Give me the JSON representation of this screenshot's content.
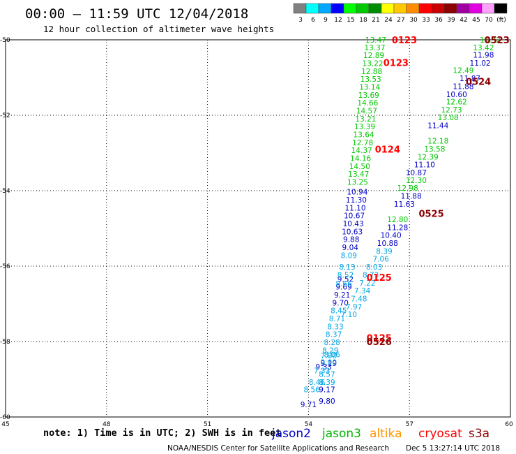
{
  "header": {
    "title": "00:00 – 11:59 UTC 12/04/2018",
    "subtitle": "12 hour collection of altimeter wave heights"
  },
  "colorbar": {
    "labels": [
      "3",
      "6",
      "9",
      "12",
      "15",
      "18",
      "21",
      "24",
      "27",
      "30",
      "33",
      "36",
      "39",
      "42",
      "45",
      "70",
      "(ft)"
    ],
    "colors": [
      "#808080",
      "#00ffff",
      "#00a8ff",
      "#0000ff",
      "#00ff00",
      "#00c800",
      "#008c00",
      "#ffff00",
      "#ffc800",
      "#ff8c00",
      "#ff0000",
      "#c80000",
      "#8c0000",
      "#a000a0",
      "#e000e0",
      "#ffa0ff",
      "#000000"
    ]
  },
  "footer": {
    "note": "note: 1) Time is in UTC; 2) SWH is in feet",
    "credit": "NOAA/NESDIS Center for Satellite Applications and Research",
    "timestamp": "Dec  5 13:27:14 UTC 2018"
  },
  "chart_data": {
    "type": "scatter",
    "xlim": [
      45,
      60
    ],
    "ylim": [
      -60,
      -50
    ],
    "x_ticks": [
      45,
      48,
      51,
      54,
      57,
      60
    ],
    "y_ticks": [
      -50,
      -52,
      -54,
      -56,
      -58,
      -60
    ],
    "x_tick_labels": [
      "45",
      "48",
      "51",
      "54",
      "57",
      "60"
    ],
    "y_tick_labels": [
      "-50",
      "-52",
      "-54",
      "-56",
      "-58",
      "-60"
    ],
    "grid": true,
    "legend": [
      {
        "name": "jason2",
        "color": "#0000c8"
      },
      {
        "name": "jason3",
        "color": "#00b400"
      },
      {
        "name": "altika",
        "color": "#ff9600"
      },
      {
        "name": "cryosat",
        "color": "#ff0000"
      },
      {
        "name": "s3a",
        "color": "#8c0000"
      }
    ],
    "time_labels": [
      {
        "text": "0123",
        "x": 56.85,
        "y": -50.0,
        "color": "#ff0000"
      },
      {
        "text": "0123",
        "x": 56.6,
        "y": -50.6,
        "color": "#ff0000"
      },
      {
        "text": "0124",
        "x": 56.35,
        "y": -52.9,
        "color": "#ff0000"
      },
      {
        "text": "0125",
        "x": 56.1,
        "y": -56.3,
        "color": "#ff0000"
      },
      {
        "text": "0125",
        "x": 56.1,
        "y": -57.9,
        "color": "#ff0000"
      },
      {
        "text": "0523",
        "x": 59.6,
        "y": -50.0,
        "color": "#8c0000"
      },
      {
        "text": "0524",
        "x": 59.05,
        "y": -51.1,
        "color": "#8c0000"
      },
      {
        "text": "0525",
        "x": 57.65,
        "y": -54.6,
        "color": "#8c0000"
      },
      {
        "text": "0526",
        "x": 56.1,
        "y": -58.0,
        "color": "#8c0000"
      }
    ],
    "series": [
      {
        "name": "jason3",
        "color": "#00c800",
        "points": [
          {
            "x": 56.0,
            "y": -50.0,
            "v": "13.47"
          },
          {
            "x": 55.97,
            "y": -50.2,
            "v": "13.37"
          },
          {
            "x": 55.94,
            "y": -50.41,
            "v": "12.89"
          },
          {
            "x": 55.91,
            "y": -50.62,
            "v": "13.22"
          },
          {
            "x": 55.88,
            "y": -50.83,
            "v": "12.88"
          },
          {
            "x": 55.85,
            "y": -51.04,
            "v": "13.53"
          },
          {
            "x": 55.82,
            "y": -51.25,
            "v": "13.14"
          },
          {
            "x": 55.79,
            "y": -51.46,
            "v": "13.69"
          },
          {
            "x": 55.76,
            "y": -51.67,
            "v": "14.66"
          },
          {
            "x": 55.73,
            "y": -51.88,
            "v": "14.57"
          },
          {
            "x": 55.7,
            "y": -52.09,
            "v": "13.21"
          },
          {
            "x": 55.67,
            "y": -52.3,
            "v": "13.39"
          },
          {
            "x": 55.64,
            "y": -52.51,
            "v": "13.64"
          },
          {
            "x": 55.61,
            "y": -52.72,
            "v": "12.78"
          },
          {
            "x": 55.58,
            "y": -52.93,
            "v": "14.37"
          },
          {
            "x": 55.55,
            "y": -53.14,
            "v": "14.16"
          },
          {
            "x": 55.52,
            "y": -53.35,
            "v": "14.50"
          },
          {
            "x": 55.49,
            "y": -53.56,
            "v": "13.47"
          },
          {
            "x": 55.46,
            "y": -53.77,
            "v": "13.25"
          },
          {
            "x": 59.4,
            "y": -50.0,
            "v": "13.32"
          },
          {
            "x": 59.2,
            "y": -50.2,
            "v": "13.42"
          },
          {
            "x": 58.6,
            "y": -50.81,
            "v": "12.49"
          },
          {
            "x": 58.4,
            "y": -51.64,
            "v": "12.62"
          },
          {
            "x": 58.25,
            "y": -51.85,
            "v": "12.73"
          },
          {
            "x": 58.15,
            "y": -52.06,
            "v": "13.08"
          },
          {
            "x": 57.85,
            "y": -52.68,
            "v": "12.18"
          },
          {
            "x": 57.75,
            "y": -52.89,
            "v": "13.58"
          },
          {
            "x": 57.55,
            "y": -53.1,
            "v": "12.39"
          },
          {
            "x": 57.2,
            "y": -53.72,
            "v": "12.30"
          },
          {
            "x": 56.95,
            "y": -53.93,
            "v": "12.98"
          },
          {
            "x": 56.65,
            "y": -54.76,
            "v": "12.80"
          }
        ]
      },
      {
        "name": "jason2",
        "color": "#0000c8",
        "points": [
          {
            "x": 55.45,
            "y": -54.03,
            "v": "10.94"
          },
          {
            "x": 55.42,
            "y": -54.24,
            "v": "11.30"
          },
          {
            "x": 55.39,
            "y": -54.45,
            "v": "11.10"
          },
          {
            "x": 55.36,
            "y": -54.66,
            "v": "10.67"
          },
          {
            "x": 55.33,
            "y": -54.87,
            "v": "10.43"
          },
          {
            "x": 55.3,
            "y": -55.08,
            "v": "10.63"
          },
          {
            "x": 55.27,
            "y": -55.29,
            "v": "9.88"
          },
          {
            "x": 55.24,
            "y": -55.5,
            "v": "9.04"
          },
          {
            "x": 55.1,
            "y": -56.34,
            "v": "9.52"
          },
          {
            "x": 55.05,
            "y": -56.55,
            "v": "9.69"
          },
          {
            "x": 55.0,
            "y": -56.76,
            "v": "9.21"
          },
          {
            "x": 54.95,
            "y": -56.97,
            "v": "9.70"
          },
          {
            "x": 54.45,
            "y": -58.67,
            "v": "9.33"
          },
          {
            "x": 54.6,
            "y": -58.57,
            "v": "9.19"
          },
          {
            "x": 54.55,
            "y": -59.27,
            "v": "9.17"
          },
          {
            "x": 54.55,
            "y": -59.57,
            "v": "9.80"
          },
          {
            "x": 54.0,
            "y": -59.67,
            "v": "9.71"
          },
          {
            "x": 59.2,
            "y": -50.4,
            "v": "11.98"
          },
          {
            "x": 59.1,
            "y": -50.61,
            "v": "11.02"
          },
          {
            "x": 58.8,
            "y": -51.02,
            "v": "11.87"
          },
          {
            "x": 58.6,
            "y": -51.23,
            "v": "11.88"
          },
          {
            "x": 58.4,
            "y": -51.44,
            "v": "10.60"
          },
          {
            "x": 57.85,
            "y": -52.27,
            "v": "11.44"
          },
          {
            "x": 57.45,
            "y": -53.31,
            "v": "11.10"
          },
          {
            "x": 57.2,
            "y": -53.52,
            "v": "10.87"
          },
          {
            "x": 57.05,
            "y": -54.14,
            "v": "11.88"
          },
          {
            "x": 56.85,
            "y": -54.35,
            "v": "11.63"
          },
          {
            "x": 56.65,
            "y": -54.97,
            "v": "11.28"
          },
          {
            "x": 56.45,
            "y": -55.18,
            "v": "10.40"
          },
          {
            "x": 56.35,
            "y": -55.39,
            "v": "10.88"
          }
        ]
      },
      {
        "name": "altika",
        "color": "#00a8e6",
        "points": [
          {
            "x": 55.2,
            "y": -55.71,
            "v": "8.09"
          },
          {
            "x": 55.15,
            "y": -56.02,
            "v": "8.13"
          },
          {
            "x": 55.1,
            "y": -56.23,
            "v": "8.52"
          },
          {
            "x": 55.05,
            "y": -56.46,
            "v": "8.66"
          },
          {
            "x": 54.9,
            "y": -57.18,
            "v": "8.45"
          },
          {
            "x": 54.85,
            "y": -57.39,
            "v": "8.71"
          },
          {
            "x": 54.8,
            "y": -57.6,
            "v": "8.33"
          },
          {
            "x": 54.75,
            "y": -57.81,
            "v": "8.37"
          },
          {
            "x": 54.7,
            "y": -58.02,
            "v": "8.28"
          },
          {
            "x": 54.65,
            "y": -58.23,
            "v": "8.29"
          },
          {
            "x": 54.6,
            "y": -58.37,
            "v": "7.80"
          },
          {
            "x": 54.4,
            "y": -58.77,
            "v": "7.33"
          },
          {
            "x": 54.25,
            "y": -59.07,
            "v": "8.46"
          },
          {
            "x": 54.1,
            "y": -59.27,
            "v": "8.56"
          },
          {
            "x": 56.25,
            "y": -55.6,
            "v": "8.39"
          },
          {
            "x": 56.15,
            "y": -55.81,
            "v": "7.06"
          },
          {
            "x": 55.95,
            "y": -56.02,
            "v": "8.03"
          },
          {
            "x": 55.85,
            "y": -56.23,
            "v": "8.73"
          },
          {
            "x": 55.75,
            "y": -56.44,
            "v": "7.22"
          },
          {
            "x": 55.6,
            "y": -56.65,
            "v": "7.34"
          },
          {
            "x": 55.5,
            "y": -56.86,
            "v": "7.48"
          },
          {
            "x": 55.35,
            "y": -57.07,
            "v": "7.97"
          },
          {
            "x": 55.2,
            "y": -57.28,
            "v": "7.10"
          },
          {
            "x": 54.7,
            "y": -58.34,
            "v": "8.06"
          },
          {
            "x": 54.6,
            "y": -58.55,
            "v": "9.00"
          },
          {
            "x": 54.55,
            "y": -58.86,
            "v": "8.57"
          },
          {
            "x": 54.55,
            "y": -59.07,
            "v": "8.39"
          }
        ]
      }
    ]
  }
}
